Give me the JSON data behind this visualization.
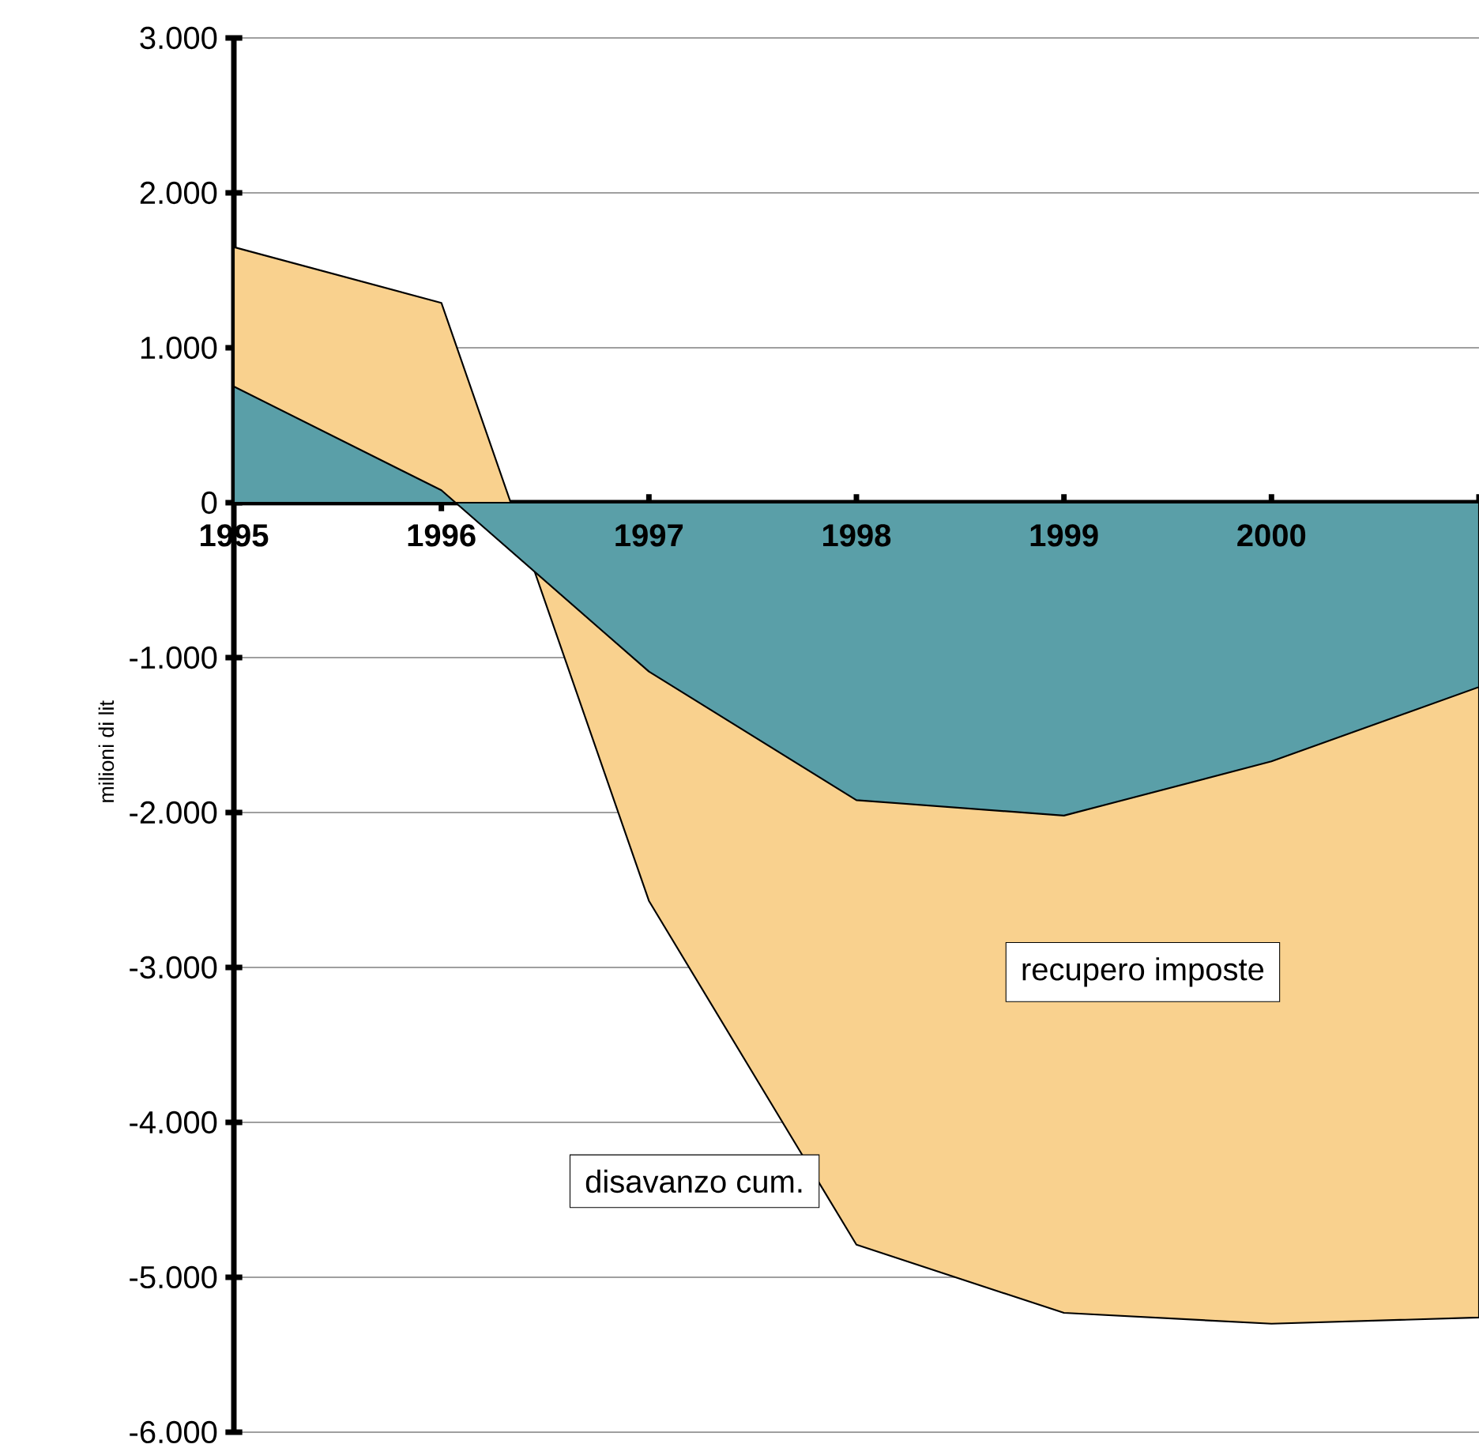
{
  "chart_data": {
    "type": "area",
    "ylabel": "milioni di lit",
    "categories": [
      "1995",
      "1996",
      "1997",
      "1998",
      "1999",
      "2000",
      null
    ],
    "series": [
      {
        "color": "#f9d18e",
        "values": [
          1650,
          1290,
          -2570,
          -4790,
          -5230,
          -5300,
          -5260
        ]
      },
      {
        "color": "#5a9fa8",
        "values": [
          750,
          80,
          -1090,
          -1920,
          -2020,
          -1670,
          -1190
        ]
      }
    ],
    "ylim": [
      -6000,
      3000
    ],
    "yticks": [
      {
        "value": -6000,
        "label": "-6.000"
      },
      {
        "value": -5000,
        "label": "-5.000"
      },
      {
        "value": -4000,
        "label": "-4.000"
      },
      {
        "value": -3000,
        "label": "-3.000"
      },
      {
        "value": -2000,
        "label": "-2.000"
      },
      {
        "value": -1000,
        "label": "-1.000"
      },
      0,
      {
        "value": 1000,
        "label": "1.000"
      },
      {
        "value": 2000,
        "label": "2.000"
      },
      {
        "value": 3000,
        "label": "3.000"
      }
    ],
    "grid": "y",
    "annotations": [
      "recupero imposte",
      "disavanzo cum."
    ]
  }
}
